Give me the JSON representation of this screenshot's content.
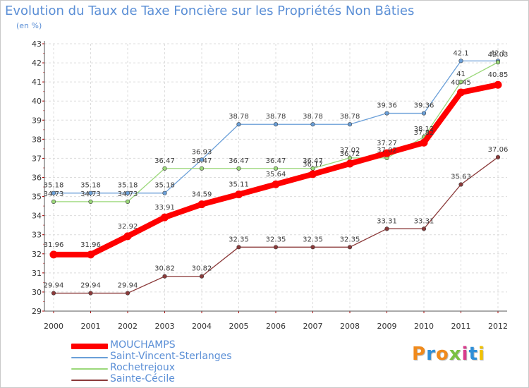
{
  "title": "Evolution du Taux de Taxe Foncière sur les Propriétés Non Bâties",
  "subtitle": "(en %)",
  "logo": {
    "text": "Proxiti",
    "letter_colors": [
      "#f08a1c",
      "#2f8fd8",
      "#f08a1c",
      "#7bc142",
      "#d93b8c",
      "#2f8fd8",
      "#f2c200"
    ]
  },
  "chart_data": {
    "type": "line",
    "x": [
      "2000",
      "2001",
      "2002",
      "2003",
      "2004",
      "2005",
      "2006",
      "2007",
      "2008",
      "2009",
      "2010",
      "2011",
      "2012"
    ],
    "ylim": [
      29,
      43
    ],
    "yticks": [
      29,
      30,
      31,
      32,
      33,
      34,
      35,
      36,
      37,
      38,
      39,
      40,
      41,
      42,
      43
    ],
    "grid": true,
    "legend_position": "bottom-left",
    "series": [
      {
        "name": "MOUCHAMPS",
        "color": "#ff0000",
        "line_width": 8,
        "values": [
          31.96,
          31.96,
          32.92,
          33.91,
          34.59,
          35.11,
          35.64,
          36.17,
          36.72,
          37.27,
          37.82,
          40.45,
          40.85
        ],
        "labels": [
          "31.96",
          "31.96",
          "32.92",
          "33.91",
          "34.59",
          "35.11",
          "35.64",
          "36.17",
          "36.72",
          "37.27",
          "37.82",
          "40.45",
          "40.85"
        ]
      },
      {
        "name": "Saint-Vincent-Sterlanges",
        "color": "#6a9fd8",
        "line_width": 1.3,
        "values": [
          35.18,
          35.18,
          35.18,
          35.18,
          36.93,
          38.78,
          38.78,
          38.78,
          38.78,
          39.36,
          39.36,
          42.1,
          42.1
        ],
        "labels": [
          "35.18",
          "35.18",
          "35.18",
          "35.18",
          "36.93",
          "38.78",
          "38.78",
          "38.78",
          "38.78",
          "39.36",
          "39.36",
          "42.1",
          "42.1"
        ]
      },
      {
        "name": "Rochetrejoux",
        "color": "#9bd87a",
        "line_width": 1.3,
        "values": [
          34.73,
          34.73,
          34.73,
          36.47,
          36.47,
          36.47,
          36.47,
          36.47,
          37.02,
          37.02,
          38.12,
          41,
          42.03
        ],
        "labels": [
          "34.73",
          "34.73",
          "34.73",
          "36.47",
          "36.47",
          "36.47",
          "36.47",
          "36.47",
          "37.02",
          "37.02",
          "38.12",
          "41",
          "42.03"
        ]
      },
      {
        "name": "Sainte-Cécile",
        "color": "#8b3a3a",
        "line_width": 1.3,
        "values": [
          29.94,
          29.94,
          29.94,
          30.82,
          30.82,
          32.35,
          32.35,
          32.35,
          32.35,
          33.31,
          33.31,
          35.63,
          37.06
        ],
        "labels": [
          "29.94",
          "29.94",
          "29.94",
          "30.82",
          "30.82",
          "32.35",
          "32.35",
          "32.35",
          "32.35",
          "33.31",
          "33.31",
          "35.63",
          "37.06"
        ]
      }
    ]
  }
}
